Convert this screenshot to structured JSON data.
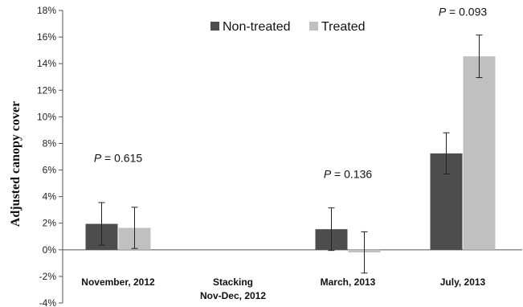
{
  "chart_data": {
    "type": "bar",
    "ylabel": "Adjusted canopy cover",
    "ylim": [
      -4,
      18
    ],
    "yticks": [
      -4,
      -2,
      0,
      2,
      4,
      6,
      8,
      10,
      12,
      14,
      16,
      18
    ],
    "y_tick_suffix": "%",
    "categories": [
      [
        "November, 2012"
      ],
      [
        "Stacking",
        "Nov-Dec, 2012"
      ],
      [
        "March, 2013"
      ],
      [
        "July, 2013"
      ]
    ],
    "series": [
      {
        "name": "Non-treated",
        "color": "#4d4d4d",
        "values": [
          1.95,
          null,
          1.55,
          7.25
        ],
        "errors": [
          1.6,
          null,
          1.6,
          1.55
        ]
      },
      {
        "name": "Treated",
        "color": "#c0c0c0",
        "values": [
          1.65,
          null,
          -0.2,
          14.55
        ],
        "errors": [
          1.55,
          null,
          1.55,
          1.6
        ]
      }
    ],
    "annotations": [
      {
        "category": 0,
        "italic": "P",
        "text": " = 0.615",
        "y": 6.6
      },
      {
        "category": 2,
        "italic": "P",
        "text": " = 0.136",
        "y": 5.4
      },
      {
        "category": 3,
        "italic": "P",
        "text": " = 0.093",
        "y": 17.6
      }
    ],
    "legend_position": "top-center",
    "grid": false
  }
}
